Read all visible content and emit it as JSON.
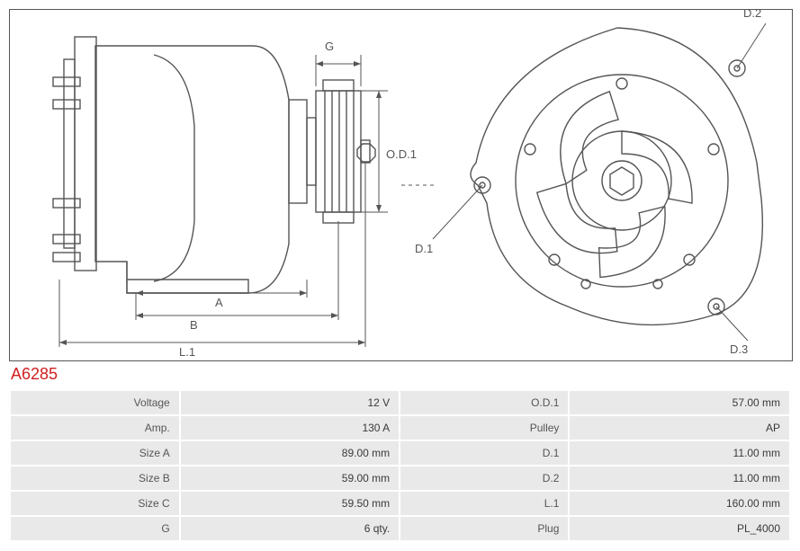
{
  "partNumber": "A6285",
  "drawing": {
    "strokeColor": "#555555",
    "strokeWidth": 1.4,
    "dimLineWidth": 1,
    "dimFont": 13,
    "labels": {
      "G": "G",
      "OD1": "O.D.1",
      "A": "A",
      "B": "B",
      "L1": "L.1",
      "D1": "D.1",
      "D2": "D.2",
      "D3": "D.3"
    }
  },
  "specs": [
    [
      {
        "label": "Voltage",
        "value": "12 V"
      },
      {
        "label": "O.D.1",
        "value": "57.00 mm"
      }
    ],
    [
      {
        "label": "Amp.",
        "value": "130 A"
      },
      {
        "label": "Pulley",
        "value": "AP"
      }
    ],
    [
      {
        "label": "Size A",
        "value": "89.00 mm"
      },
      {
        "label": "D.1",
        "value": "11.00 mm"
      }
    ],
    [
      {
        "label": "Size B",
        "value": "59.00 mm"
      },
      {
        "label": "D.2",
        "value": "11.00 mm"
      }
    ],
    [
      {
        "label": "Size C",
        "value": "59.50 mm"
      },
      {
        "label": "L.1",
        "value": "160.00 mm"
      }
    ],
    [
      {
        "label": "G",
        "value": "6 qty."
      },
      {
        "label": "Plug",
        "value": "PL_4000"
      }
    ]
  ]
}
